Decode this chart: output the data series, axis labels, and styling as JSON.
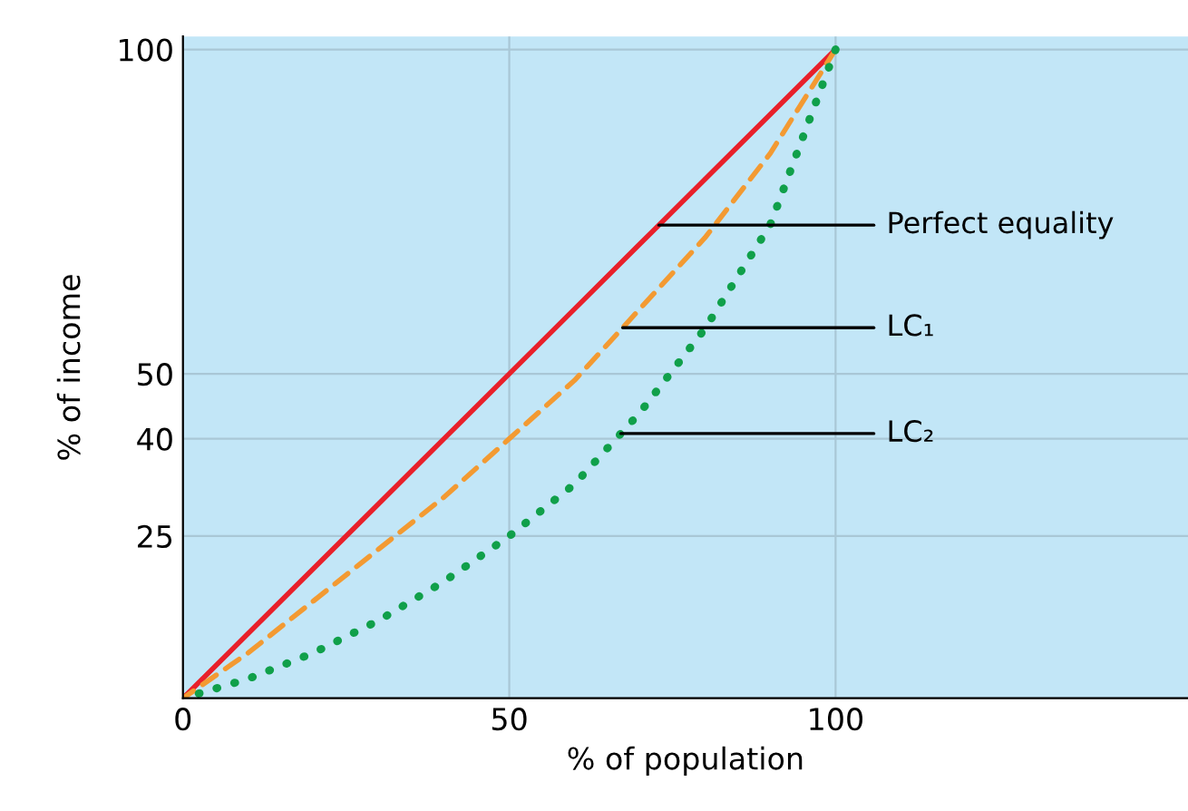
{
  "chart_data": {
    "type": "line",
    "xlabel": "% of population",
    "ylabel": "% of income",
    "x": [
      0,
      10,
      20,
      30,
      40,
      50,
      60,
      70,
      80,
      90,
      100
    ],
    "series": [
      {
        "name": "Perfect equality",
        "color": "#e8202a",
        "values": [
          0,
          10,
          20,
          30,
          40,
          50,
          60,
          70,
          80,
          90,
          100
        ],
        "line_style": "solid",
        "marker": "none"
      },
      {
        "name": "LC₁",
        "color": "#f39a32",
        "values": [
          0,
          7,
          15,
          23,
          31,
          40,
          49,
          60,
          71,
          84,
          100
        ],
        "line_style": "dashed",
        "marker": "none"
      },
      {
        "name": "LC₂",
        "color": "#10a04a",
        "values": [
          0,
          3,
          7,
          12,
          18,
          25,
          33,
          44,
          57,
          73,
          100
        ],
        "line_style": "dotted",
        "marker": "none"
      }
    ],
    "xlim": [
      0,
      154
    ],
    "ylim": [
      0,
      102
    ],
    "xticks": [
      0,
      50,
      100
    ],
    "yticks": [
      {
        "value": 0,
        "label": null
      },
      25,
      40,
      50,
      100
    ],
    "grid": true
  }
}
